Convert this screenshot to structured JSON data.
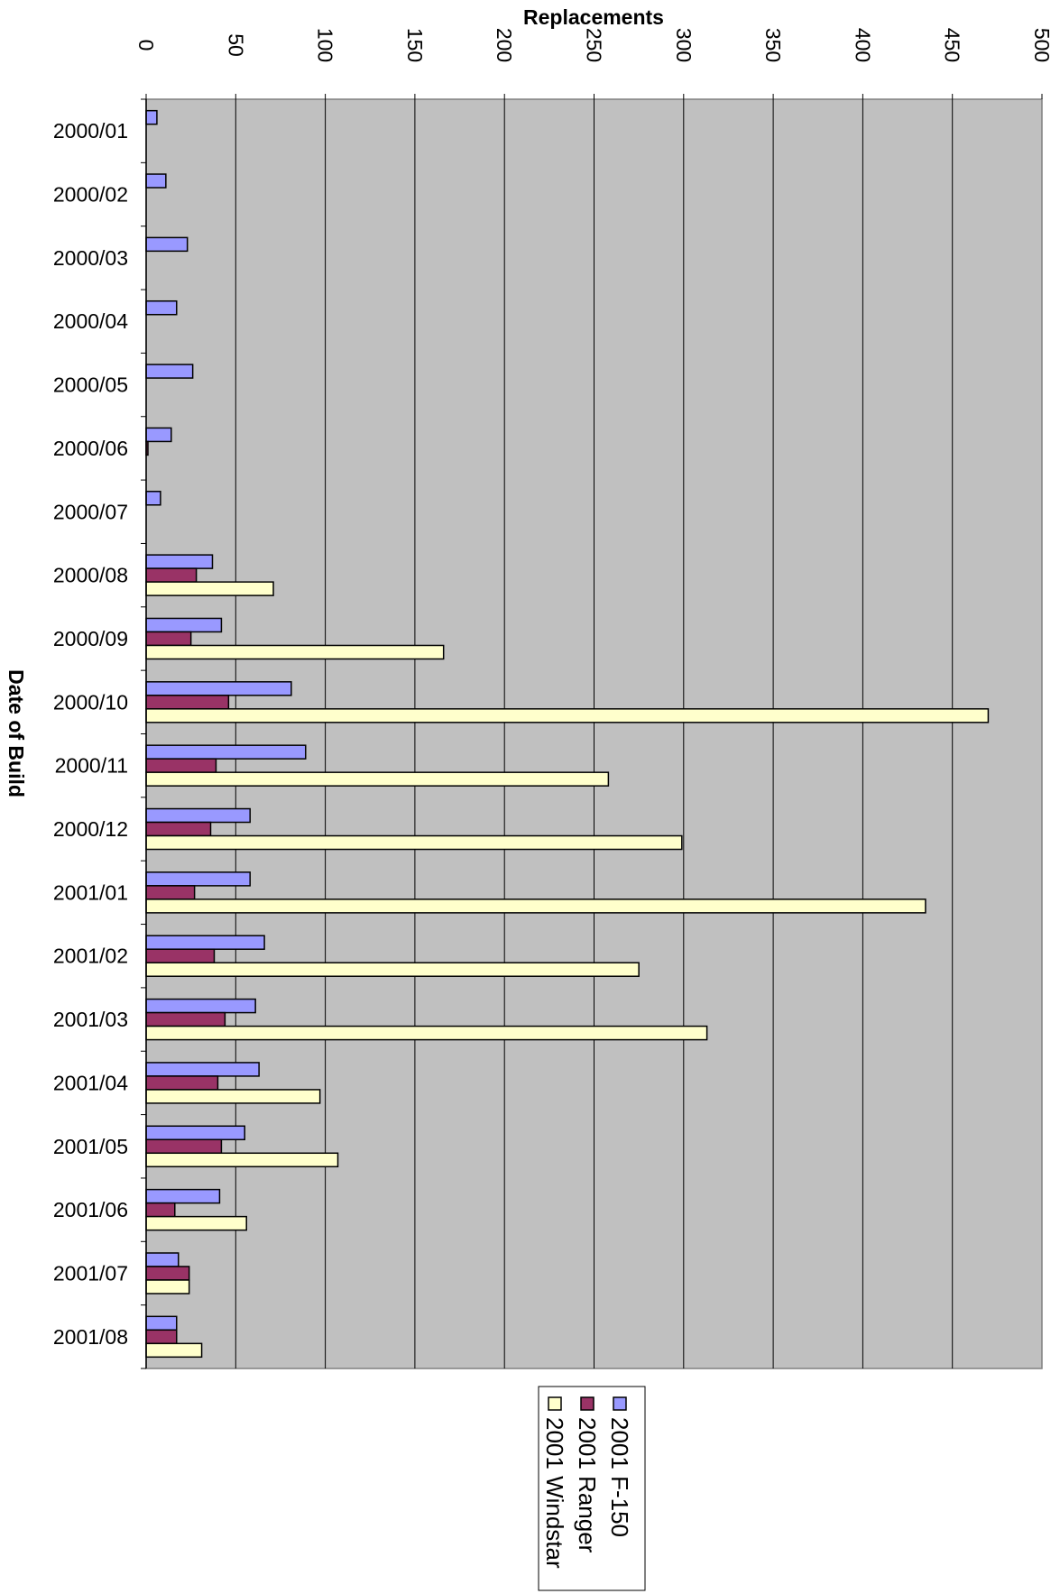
{
  "chart_data": {
    "type": "bar",
    "orientation": "horizontal",
    "xlabel": "Replacements",
    "ylabel": "Date of Build",
    "xlim": [
      0,
      500
    ],
    "xticks": [
      0,
      50,
      100,
      150,
      200,
      250,
      300,
      350,
      400,
      450,
      500
    ],
    "grid": true,
    "legend_position": "bottom",
    "categories": [
      "2000/01",
      "2000/02",
      "2000/03",
      "2000/04",
      "2000/05",
      "2000/06",
      "2000/07",
      "2000/08",
      "2000/09",
      "2000/10",
      "2000/11",
      "2000/12",
      "2001/01",
      "2001/02",
      "2001/03",
      "2001/04",
      "2001/05",
      "2001/06",
      "2001/07",
      "2001/08"
    ],
    "series": [
      {
        "name": "2001 F-150",
        "color": "#9999ff",
        "values": [
          6,
          11,
          23,
          17,
          26,
          14,
          8,
          37,
          42,
          81,
          89,
          58,
          58,
          66,
          61,
          63,
          55,
          41,
          18,
          17
        ]
      },
      {
        "name": "2001 Ranger",
        "color": "#993366",
        "values": [
          0,
          0,
          0,
          0,
          0,
          1,
          0,
          28,
          25,
          46,
          39,
          36,
          27,
          38,
          44,
          40,
          42,
          16,
          24,
          17
        ]
      },
      {
        "name": "2001 Windstar",
        "color": "#ffffcc",
        "values": [
          0,
          0,
          0,
          0,
          0,
          0,
          0,
          71,
          166,
          470,
          258,
          299,
          435,
          275,
          313,
          97,
          107,
          56,
          24,
          31
        ]
      }
    ]
  }
}
